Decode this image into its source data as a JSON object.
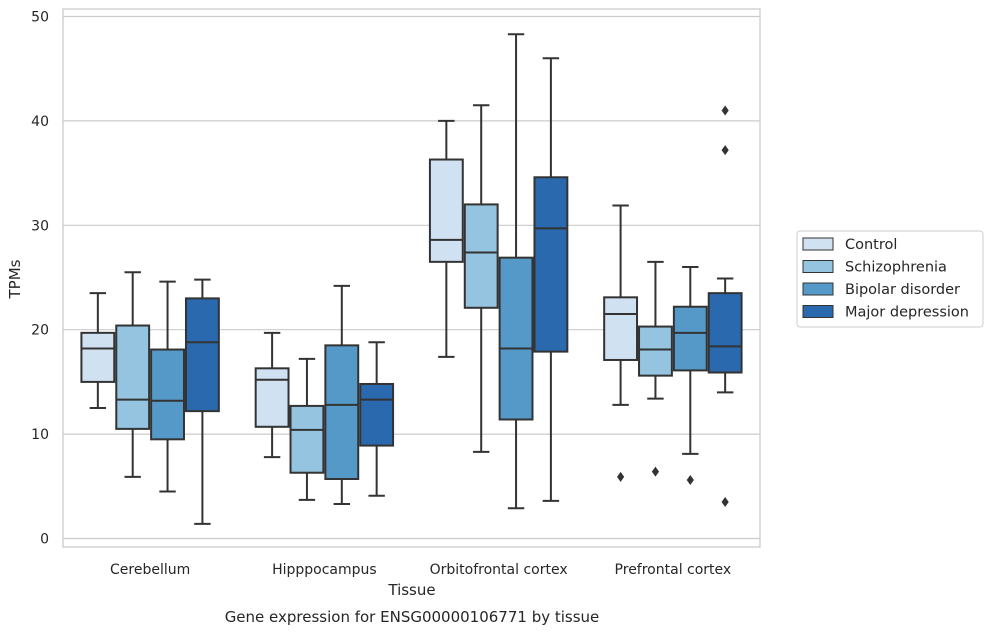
{
  "chart_data": {
    "type": "box",
    "caption": "Gene expression for ENSG00000106771 by tissue",
    "xlabel": "Tissue",
    "ylabel": "TPMs",
    "ylim": [
      -1,
      50.5
    ],
    "yticks": [
      0,
      10,
      20,
      30,
      40,
      50
    ],
    "grid": true,
    "legend_placement": "right",
    "categories": [
      "Cerebellum",
      "Hipppocampus",
      "Orbitofrontal cortex",
      "Prefrontal cortex"
    ],
    "series": [
      {
        "name": "Control",
        "color": "#d0e1f2",
        "boxes": [
          {
            "whislo": 12.5,
            "q1": 15.0,
            "med": 18.2,
            "q3": 19.7,
            "whishi": 23.5,
            "fliers": []
          },
          {
            "whislo": 7.8,
            "q1": 10.7,
            "med": 15.2,
            "q3": 16.3,
            "whishi": 19.7,
            "fliers": []
          },
          {
            "whislo": 17.4,
            "q1": 26.5,
            "med": 28.6,
            "q3": 36.3,
            "whishi": 40.0,
            "fliers": []
          },
          {
            "whislo": 12.8,
            "q1": 17.1,
            "med": 21.5,
            "q3": 23.1,
            "whishi": 31.9,
            "fliers": [
              5.9
            ]
          }
        ]
      },
      {
        "name": "Schizophrenia",
        "color": "#94c4df",
        "boxes": [
          {
            "whislo": 5.9,
            "q1": 10.5,
            "med": 13.3,
            "q3": 20.4,
            "whishi": 25.5,
            "fliers": []
          },
          {
            "whislo": 3.7,
            "q1": 6.3,
            "med": 10.4,
            "q3": 12.7,
            "whishi": 17.2,
            "fliers": []
          },
          {
            "whislo": 8.3,
            "q1": 22.1,
            "med": 27.4,
            "q3": 32.0,
            "whishi": 41.5,
            "fliers": []
          },
          {
            "whislo": 13.4,
            "q1": 15.6,
            "med": 18.1,
            "q3": 20.3,
            "whishi": 26.5,
            "fliers": [
              6.4
            ]
          }
        ]
      },
      {
        "name": "Bipolar disorder",
        "color": "#5599c8",
        "boxes": [
          {
            "whislo": 4.5,
            "q1": 9.5,
            "med": 13.2,
            "q3": 18.1,
            "whishi": 24.6,
            "fliers": []
          },
          {
            "whislo": 3.3,
            "q1": 5.7,
            "med": 12.8,
            "q3": 18.5,
            "whishi": 24.2,
            "fliers": []
          },
          {
            "whislo": 2.9,
            "q1": 11.4,
            "med": 18.2,
            "q3": 26.9,
            "whishi": 48.3,
            "fliers": []
          },
          {
            "whislo": 8.1,
            "q1": 16.1,
            "med": 19.7,
            "q3": 22.2,
            "whishi": 26.0,
            "fliers": [
              5.6
            ]
          }
        ]
      },
      {
        "name": "Major depression",
        "color": "#2a69ad",
        "boxes": [
          {
            "whislo": 1.4,
            "q1": 12.2,
            "med": 18.8,
            "q3": 23.0,
            "whishi": 24.8,
            "fliers": []
          },
          {
            "whislo": 4.1,
            "q1": 8.9,
            "med": 13.3,
            "q3": 14.8,
            "whishi": 18.8,
            "fliers": []
          },
          {
            "whislo": 3.6,
            "q1": 17.9,
            "med": 29.7,
            "q3": 34.6,
            "whishi": 46.0,
            "fliers": []
          },
          {
            "whislo": 14.0,
            "q1": 15.9,
            "med": 18.4,
            "q3": 23.5,
            "whishi": 24.9,
            "fliers": [
              41.0,
              37.2,
              3.5
            ]
          }
        ]
      }
    ]
  }
}
